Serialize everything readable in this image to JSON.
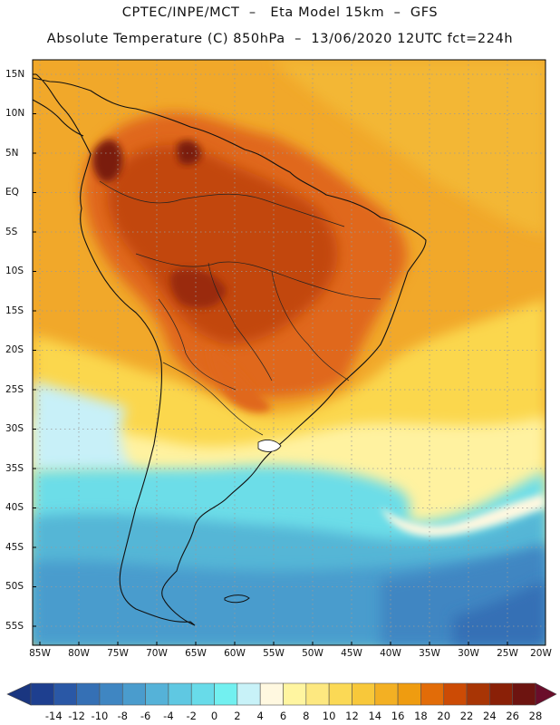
{
  "header": {
    "title_line1": "CPTEC/INPE/MCT  –   Eta Model 15km  –  GFS",
    "title_line2": "Absolute Temperature (C) 850hPa  –  13/06/2020 12UTC fct=224h"
  },
  "axes": {
    "lat_labels": [
      "15N",
      "10N",
      "5N",
      "EQ",
      "5S",
      "10S",
      "15S",
      "20S",
      "25S",
      "30S",
      "35S",
      "40S",
      "45S",
      "50S",
      "55S"
    ],
    "lon_labels": [
      "85W",
      "80W",
      "75W",
      "70W",
      "65W",
      "60W",
      "55W",
      "50W",
      "45W",
      "40W",
      "35W",
      "30W",
      "25W",
      "20W"
    ]
  },
  "colorbar": {
    "labels": [
      "-14",
      "-12",
      "-10",
      "-8",
      "-6",
      "-4",
      "-2",
      "0",
      "2",
      "4",
      "6",
      "8",
      "10",
      "12",
      "14",
      "16",
      "18",
      "20",
      "22",
      "24",
      "26",
      "28"
    ],
    "colors": [
      "#1e3f8f",
      "#2a58a6",
      "#3570b5",
      "#3f86c2",
      "#4a9ccd",
      "#55b2d8",
      "#5fc8e2",
      "#68dbe9",
      "#72f0f0",
      "#c8f2f8",
      "#fff8e0",
      "#fff5a0",
      "#fde880",
      "#fbd955",
      "#f8c83a",
      "#f3b023",
      "#ef9c10",
      "#e26c08",
      "#cc4b05",
      "#a83505",
      "#8a2007",
      "#6d1410"
    ],
    "extend_left_color": "#1a3680",
    "extend_right_color": "#6a0d2a"
  }
}
